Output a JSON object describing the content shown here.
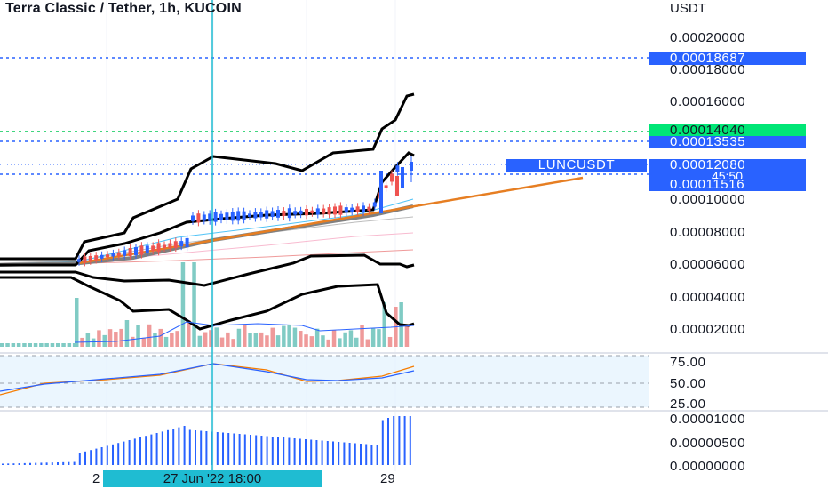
{
  "header": {
    "title": "Terra Classic / Tether, 1h, KUCOIN"
  },
  "price_axis": {
    "currency": "USDT",
    "ticks": [
      "0.00020000",
      "0.00018000",
      "0.00016000",
      "0.00010000",
      "0.00008000",
      "0.00006000",
      "0.00004000",
      "0.00002000"
    ]
  },
  "price_labels": {
    "high": {
      "text": "0.00018687",
      "color": "#2962ff"
    },
    "green": {
      "text": "0.00014040",
      "color": "#00e676"
    },
    "mid": {
      "text": "0.00013535",
      "color": "#2962ff"
    },
    "last": {
      "text": "0.00012080",
      "color": "#2962ff"
    },
    "low": {
      "text": "0.00011516",
      "color": "#2962ff"
    }
  },
  "symbol_tag": "LUNCUSDT",
  "countdown": "45:50",
  "stoch_axis": {
    "ticks": [
      "75.00",
      "50.00",
      "25.00"
    ]
  },
  "volume_axis": {
    "ticks": [
      "0.00001000",
      "0.00000500",
      "0.00000000"
    ]
  },
  "time_axis": {
    "labels": [
      "2",
      "29"
    ],
    "cursor_label": "27 Jun '22     18:00"
  },
  "colors": {
    "up": "#2962ff",
    "down": "#ef5350",
    "cursor": "#1fbcd2",
    "stoch_k": "#2962ff",
    "stoch_d": "#f57c00",
    "trend": "#e67e22"
  }
}
